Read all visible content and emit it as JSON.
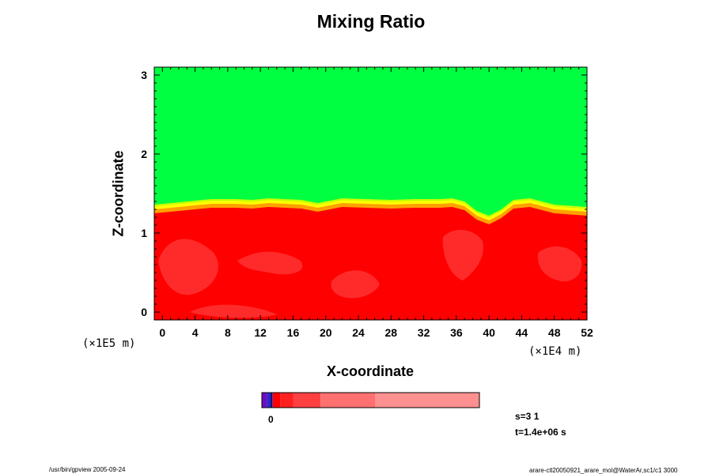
{
  "chart_data": {
    "type": "heatmap",
    "title": "Mixing Ratio",
    "xlabel": "X-coordinate",
    "ylabel": "Z-coordinate",
    "x_unit": "(×1E4 m)",
    "y_unit": "(×1E5 m)",
    "xlim": [
      -1,
      52
    ],
    "ylim": [
      -0.1,
      3.1
    ],
    "x_ticks": [
      "0",
      "4",
      "8",
      "12",
      "16",
      "20",
      "24",
      "28",
      "32",
      "36",
      "40",
      "44",
      "48",
      "52"
    ],
    "y_ticks": [
      "0",
      "1",
      "2",
      "3"
    ],
    "regions": [
      {
        "name": "upper",
        "color": "#00ff40"
      },
      {
        "name": "lower",
        "color": "#ff0000"
      }
    ],
    "interface_height": {
      "x": [
        -1,
        3,
        6,
        9,
        11,
        13,
        15,
        17,
        19,
        22,
        25,
        28,
        31,
        34,
        35.5,
        37,
        38.5,
        40,
        41.5,
        43,
        45,
        48,
        52
      ],
      "z": [
        1.3,
        1.34,
        1.37,
        1.37,
        1.36,
        1.38,
        1.37,
        1.36,
        1.32,
        1.38,
        1.37,
        1.36,
        1.37,
        1.37,
        1.38,
        1.34,
        1.22,
        1.16,
        1.24,
        1.36,
        1.38,
        1.3,
        1.27
      ]
    },
    "colorbar_tick": "0"
  },
  "info": {
    "s": "s=3 1",
    "t": "t=1.4e+06 s"
  },
  "footer": {
    "left": "/usr/bin/gpview 2005-09-24",
    "right": "arare-ctl20050921_arare_mol@WaterAr,sc1/c1 3000"
  },
  "colors": {
    "upper": "#00ff40",
    "lower": "#ff0000",
    "lower_patch": "#ff3a3a",
    "transition": [
      "#ffff00",
      "#c8ff00",
      "#ffa000"
    ],
    "colorbar": [
      "#6b0fc0",
      "#2a2ad0",
      "#ff0000",
      "#ff2020",
      "#ff4040",
      "#ff7070",
      "#ff9090",
      "#ffa0a0"
    ]
  }
}
